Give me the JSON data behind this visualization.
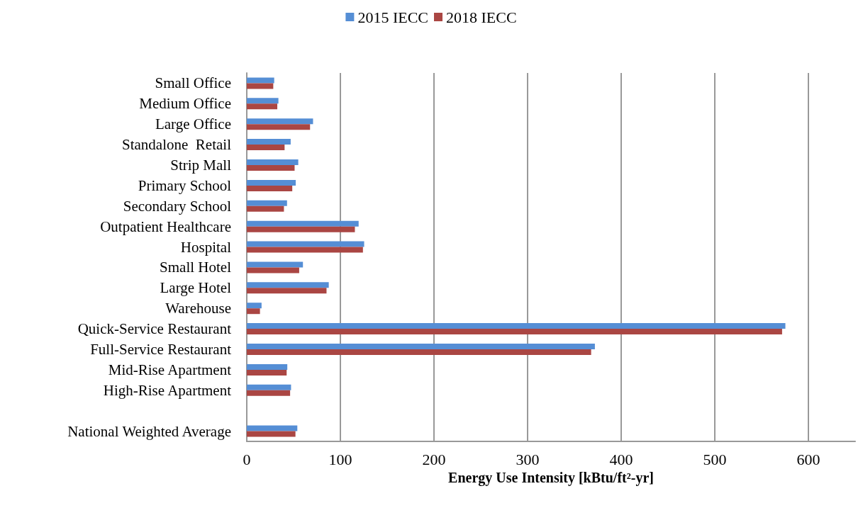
{
  "chart_data": {
    "type": "bar",
    "orientation": "horizontal",
    "xlabel": "Energy Use Intensity [kBtu/ft²-yr]",
    "categories": [
      "Small Office",
      "Medium Office",
      "Large Office",
      "Standalone  Retail",
      "Strip Mall",
      "Primary School",
      "Secondary School",
      "Outpatient Healthcare",
      "Hospital",
      "Small Hotel",
      "Large Hotel",
      "Warehouse",
      "Quick-Service Restaurant",
      "Full-Service Restaurant",
      "Mid-Rise Apartment",
      "High-Rise Apartment",
      null,
      "National Weighted Average"
    ],
    "series": [
      {
        "name": "2015 IECC",
        "color": "#558ed5",
        "values": [
          29.3,
          33.8,
          70.8,
          46.9,
          55.0,
          52.3,
          43.0,
          119.5,
          125.4,
          60.0,
          87.6,
          15.8,
          575.4,
          371.9,
          43.3,
          47.3,
          null,
          54.0
        ]
      },
      {
        "name": "2018 IECC",
        "color": "#aa4643",
        "values": [
          28.3,
          32.6,
          67.6,
          40.4,
          51.1,
          48.6,
          39.7,
          115.5,
          124.1,
          56.0,
          85.2,
          14.1,
          571.9,
          367.9,
          42.6,
          46.3,
          null,
          52.0
        ]
      }
    ],
    "xlim": [
      0,
      650
    ],
    "xticks": [
      0,
      100,
      200,
      300,
      400,
      500,
      600
    ],
    "grid": "x",
    "legend": "top"
  }
}
